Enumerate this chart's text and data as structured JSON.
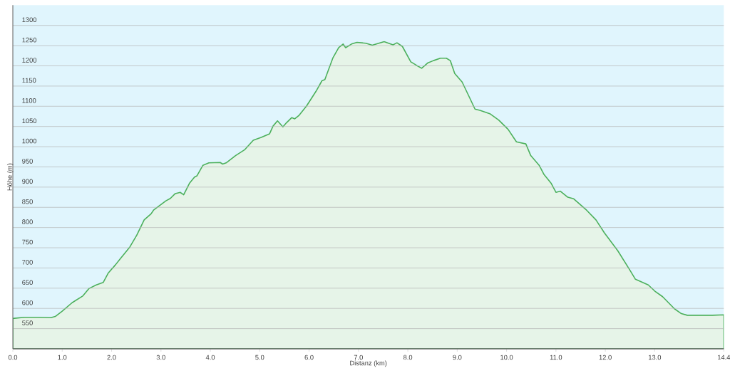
{
  "chart_data": {
    "type": "area",
    "xlabel": "Distanz (km)",
    "ylabel": "Höhe (m)",
    "xlim": [
      0,
      14.4
    ],
    "ylim": [
      500,
      1350
    ],
    "xticks": [
      {
        "value": 0,
        "label": "0.0"
      },
      {
        "value": 1,
        "label": "1.0"
      },
      {
        "value": 2,
        "label": "2.0"
      },
      {
        "value": 3,
        "label": "3.0"
      },
      {
        "value": 4,
        "label": "4.0"
      },
      {
        "value": 5,
        "label": "5.0"
      },
      {
        "value": 6,
        "label": "6.0"
      },
      {
        "value": 7,
        "label": "7.0"
      },
      {
        "value": 8,
        "label": "8.0"
      },
      {
        "value": 9,
        "label": "9.0"
      },
      {
        "value": 10,
        "label": "10.0"
      },
      {
        "value": 11,
        "label": "11.0"
      },
      {
        "value": 12,
        "label": "12.0"
      },
      {
        "value": 13,
        "label": "13.0"
      },
      {
        "value": 14.4,
        "label": "14.4"
      }
    ],
    "yticks": [
      550,
      600,
      650,
      700,
      750,
      800,
      850,
      900,
      950,
      1000,
      1050,
      1100,
      1150,
      1200,
      1250,
      1300
    ],
    "grid": "y",
    "series": [
      {
        "color": "#4cb05c",
        "x": [
          0,
          0.23,
          0.52,
          0.77,
          0.86,
          1.0,
          1.2,
          1.42,
          1.54,
          1.69,
          1.83,
          1.93,
          2.08,
          2.17,
          2.37,
          2.51,
          2.66,
          2.8,
          2.85,
          3.1,
          3.19,
          3.29,
          3.39,
          3.46,
          3.58,
          3.68,
          3.73,
          3.85,
          3.97,
          4.2,
          4.25,
          4.32,
          4.51,
          4.7,
          4.87,
          5.03,
          5.2,
          5.27,
          5.36,
          5.47,
          5.54,
          5.65,
          5.71,
          5.8,
          5.95,
          6.14,
          6.26,
          6.32,
          6.48,
          6.6,
          6.69,
          6.74,
          6.86,
          6.97,
          7.15,
          7.28,
          7.52,
          7.7,
          7.78,
          7.89,
          8.06,
          8.18,
          8.28,
          8.4,
          8.52,
          8.66,
          8.78,
          8.86,
          8.95,
          9.1,
          9.26,
          9.36,
          9.46,
          9.67,
          9.84,
          10.03,
          10.2,
          10.39,
          10.49,
          10.66,
          10.76,
          10.9,
          11.0,
          11.09,
          11.24,
          11.36,
          11.62,
          11.81,
          11.98,
          12.25,
          12.49,
          12.61,
          12.87,
          13.0,
          13.16,
          13.4,
          13.54,
          13.66,
          14.17,
          14.4
        ],
        "values": [
          575,
          578,
          578,
          577,
          580,
          593,
          614,
          631,
          649,
          658,
          664,
          687,
          708,
          722,
          752,
          781,
          819,
          834,
          843,
          866,
          872,
          884,
          887,
          881,
          910,
          925,
          928,
          954,
          960,
          961,
          957,
          960,
          978,
          993,
          1016,
          1023,
          1032,
          1051,
          1064,
          1049,
          1059,
          1072,
          1069,
          1078,
          1101,
          1137,
          1163,
          1166,
          1219,
          1245,
          1254,
          1245,
          1254,
          1258,
          1256,
          1251,
          1260,
          1252,
          1257,
          1248,
          1210,
          1201,
          1194,
          1207,
          1213,
          1219,
          1219,
          1213,
          1181,
          1160,
          1119,
          1093,
          1090,
          1081,
          1066,
          1043,
          1012,
          1007,
          978,
          954,
          931,
          910,
          887,
          890,
          875,
          871,
          843,
          819,
          787,
          743,
          696,
          672,
          658,
          643,
          629,
          599,
          587,
          583,
          583,
          584
        ]
      }
    ]
  }
}
